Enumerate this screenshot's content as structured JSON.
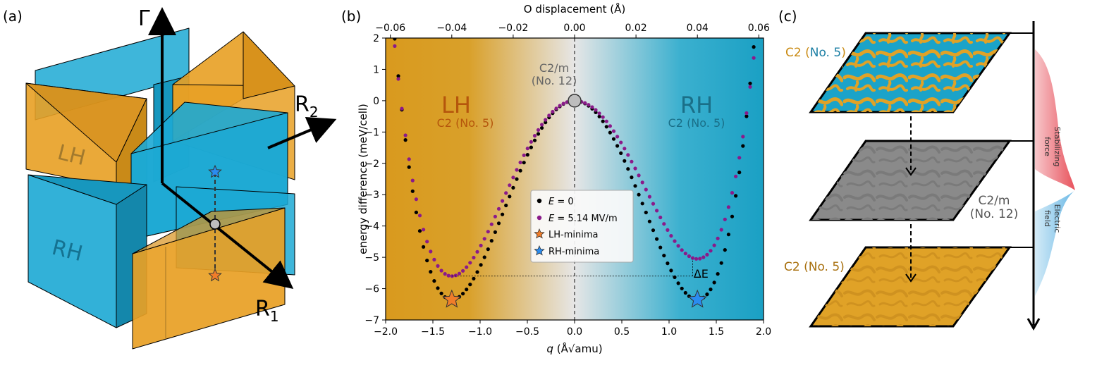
{
  "panel_labels": {
    "a": "(a)",
    "b": "(b)",
    "c": "(c)"
  },
  "panel_a": {
    "gamma_label": "Γ",
    "r1_label": "R",
    "r1_sub": "1",
    "r2_label": "R",
    "r2_sub": "2",
    "lh_label": "LH",
    "rh_label": "RH",
    "colors": {
      "blue": "#1ca9d4",
      "orange": "#e8a024",
      "orange_star": "#f07d2a",
      "blue_star": "#2a8cf0"
    }
  },
  "panel_b": {
    "chart_data": {
      "type": "scatter",
      "xlabel_italic": "q",
      "xlabel_rest": " (Å√amu)",
      "ylabel": "energy difference (meV/cell)",
      "top_xlabel": "O displacement (Å)",
      "xlim": [
        -2.0,
        2.0
      ],
      "ylim": [
        -7,
        2
      ],
      "xticks": [
        "−2.0",
        "−1.5",
        "−1.0",
        "−0.5",
        "0.0",
        "0.5",
        "1.0",
        "1.5",
        "2.0"
      ],
      "xtick_values": [
        -2.0,
        -1.5,
        -1.0,
        -0.5,
        0.0,
        0.5,
        1.0,
        1.5,
        2.0
      ],
      "yticks": [
        "2",
        "1",
        "0",
        "−1",
        "−2",
        "−3",
        "−4",
        "−5",
        "−6",
        "−7"
      ],
      "ytick_values": [
        2,
        1,
        0,
        -1,
        -2,
        -3,
        -4,
        -5,
        -6,
        -7
      ],
      "top_xticks": [
        "−0.06",
        "−0.04",
        "−0.02",
        "0.00",
        "0.02",
        "0.04",
        "0.06"
      ],
      "top_xtick_values": [
        -0.06,
        -0.04,
        -0.02,
        0.0,
        0.02,
        0.04,
        0.06
      ],
      "top_axis_scale_q_per_A": 32.5,
      "series": [
        {
          "name": "E = 0",
          "color": "#000000",
          "model": "double_well",
          "minimum_q": 1.3,
          "minimum_E": -6.35,
          "offset_per_q": 0,
          "q_step": 0.038
        },
        {
          "name": "E = 5.14 MV/m",
          "color": "#8a1a8a",
          "model": "double_well_tilted",
          "minimum_q": 1.3,
          "minimum_E": -5.3,
          "offset_per_q": 0.27,
          "q_step": 0.038
        }
      ],
      "legend": {
        "placement": "center-right",
        "entries": [
          {
            "label": "E",
            "rest": " = 0",
            "marker": "dot",
            "color": "#000000"
          },
          {
            "label": "E",
            "rest": " = 5.14 MV/m",
            "marker": "dot",
            "color": "#8a1a8a"
          },
          {
            "label": "LH-minima",
            "rest": "",
            "marker": "star",
            "color": "#f07d2a"
          },
          {
            "label": "RH-minima",
            "rest": "",
            "marker": "star",
            "color": "#2a8cf0"
          }
        ]
      },
      "annotations": {
        "lh_big": "LH",
        "lh_small": "C2 (No. 5)",
        "rh_big": "RH",
        "rh_small": "C2 (No. 5)",
        "center_line1": "C2/m",
        "center_line2": "(No. 12)",
        "delta_e": "ΔE",
        "delta_e_upper": -5.6,
        "delta_e_lower": -6.35,
        "lh_star": {
          "q": -1.3,
          "E": -6.35
        },
        "rh_star": {
          "q": 1.3,
          "E": -6.35
        },
        "saddle": {
          "q": 0.0,
          "E": 0.0
        }
      },
      "colors": {
        "orange": "#d99a1e",
        "mid": "#e6e6e6",
        "blue": "#1aa0c4",
        "lh_text": "#b5560c",
        "rh_text": "#1a6f88",
        "center_text": "#666666"
      }
    }
  },
  "panel_c": {
    "top_label_a": "C2 (",
    "top_label_b": "No. 5",
    "top_label_c": ")",
    "mid_label_line1": "C2/m",
    "mid_label_line2": "(No. 12)",
    "bottom_label": "C2 (No. 5)",
    "stabilizing_label_1": "Stabilizing",
    "stabilizing_label_2": "force",
    "electric_label_1": "Electric",
    "electric_label_2": "field",
    "colors": {
      "orange": "#e0a227",
      "blue": "#1ba3c9",
      "gray": "#8a8a8a",
      "red": "#e8525c",
      "light_blue": "#6ab8e6",
      "label_orange": "#c98a12",
      "label_blue": "#1c7fa4",
      "label_gray": "#555555"
    }
  }
}
